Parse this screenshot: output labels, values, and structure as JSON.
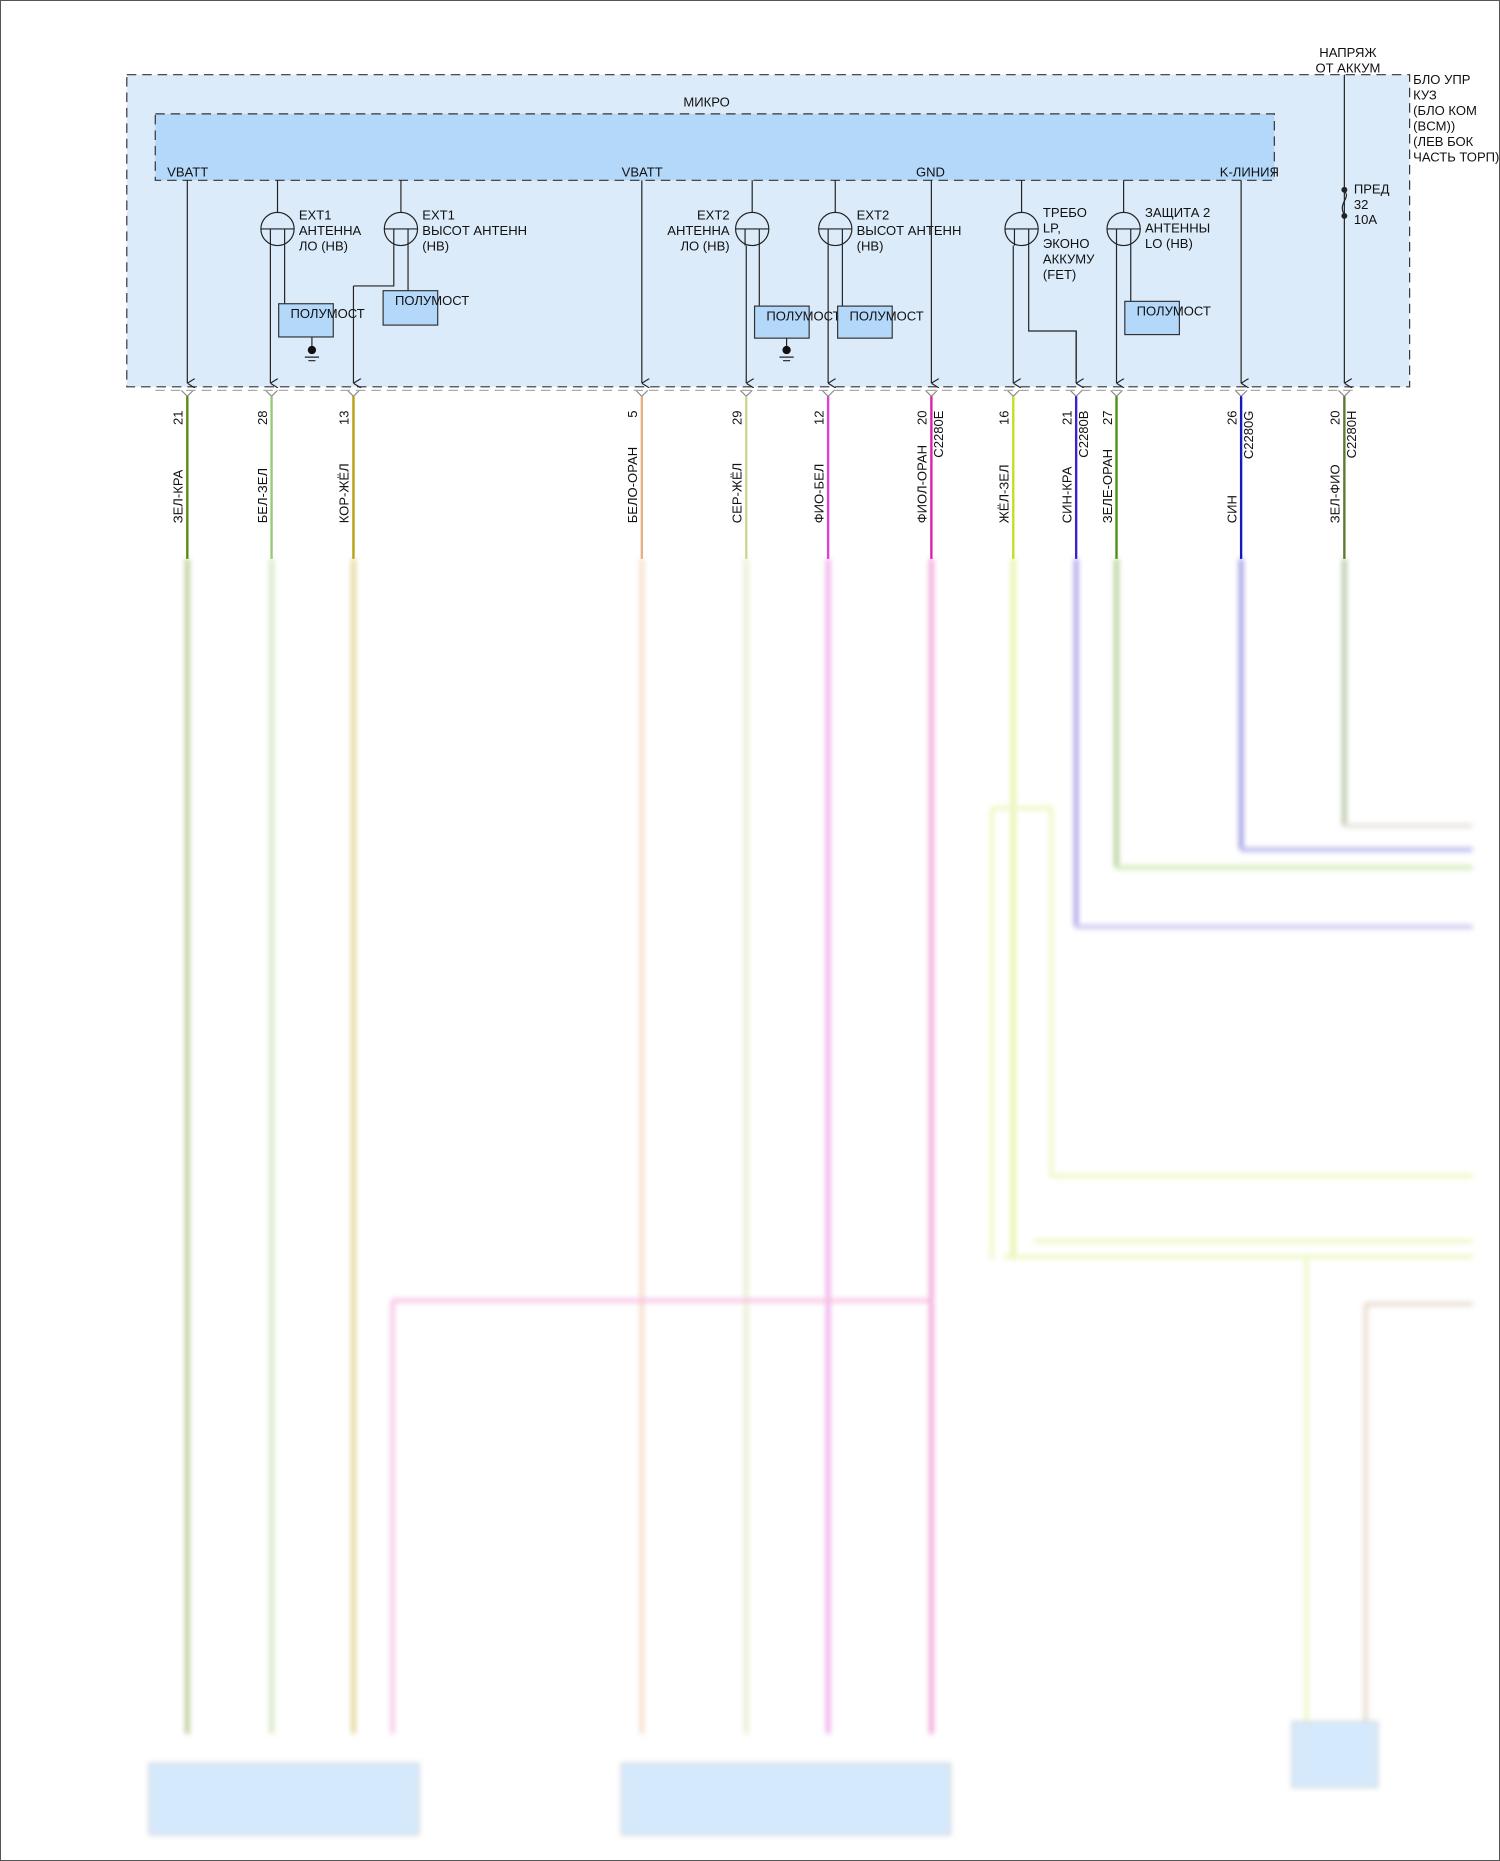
{
  "module": {
    "title_lines": [
      "БЛО УПР",
      "КУЗ",
      "(БЛО КОМ",
      "(BCM))",
      "(ЛЕВ БОК",
      "ЧАСТЬ ТОРП)"
    ],
    "inner_label": "МИКРО",
    "pins": {
      "vbatt1": "VBATT",
      "vbatt2": "VBATT",
      "gnd": "GND",
      "kline": "K-ЛИНИЯ"
    },
    "supply_lines": [
      "НАПРЯЖ",
      "ОТ АККУМ"
    ],
    "fuse_lines": [
      "ПРЕД",
      "32",
      "10A"
    ],
    "drivers": [
      {
        "lines": [
          "EXT1",
          "АНТЕННА",
          "ЛО (НВ)"
        ]
      },
      {
        "lines": [
          "EXT1",
          "ВЫСОТ АНТЕНН",
          "(НВ)"
        ]
      },
      {
        "lines": [
          "EXT2",
          "АНТЕННА",
          "ЛО (НВ)"
        ]
      },
      {
        "lines": [
          "EXT2",
          "ВЫСОТ АНТЕНН",
          "(НВ)"
        ]
      },
      {
        "lines": [
          "ТРЕБО",
          "LP,",
          "ЭКОНО",
          "АККУМУ",
          "(FET)"
        ]
      },
      {
        "lines": [
          "ЗАЩИТА 2",
          "АНТЕННЫ",
          "LO (НВ)"
        ]
      }
    ],
    "half_bridge_label": "ПОЛУМОСТ"
  },
  "wires": [
    {
      "pin": "21",
      "color_name": "ЗЕЛ-КРА",
      "color": "#5a8a10",
      "connector": ""
    },
    {
      "pin": "28",
      "color_name": "БЕЛ-ЗЕЛ",
      "color": "#98c878",
      "connector": ""
    },
    {
      "pin": "13",
      "color_name": "КОР-ЖЁЛ",
      "color": "#b8a010",
      "connector": ""
    },
    {
      "pin": "5",
      "color_name": "БЕЛО-ОРАН",
      "color": "#e8b080",
      "connector": ""
    },
    {
      "pin": "29",
      "color_name": "СЕР-ЖЁЛ",
      "color": "#c8d890",
      "connector": ""
    },
    {
      "pin": "12",
      "color_name": "ФИО-БЕЛ",
      "color": "#e040d0",
      "connector": ""
    },
    {
      "pin": "20",
      "color_name": "ФИОЛ-ОРАН",
      "color": "#e020a8",
      "connector": "C2280E"
    },
    {
      "pin": "16",
      "color_name": "ЖЁЛ-ЗЕЛ",
      "color": "#c0e020",
      "connector": ""
    },
    {
      "pin": "21",
      "color_name": "СИН-КРА",
      "color": "#4020c8",
      "connector": "C2280B"
    },
    {
      "pin": "27",
      "color_name": "ЗЕЛЕ-ОРАН",
      "color": "#4a9010",
      "connector": ""
    },
    {
      "pin": "26",
      "color_name": "СИН",
      "color": "#1818c0",
      "connector": "C2280G"
    },
    {
      "pin": "20",
      "color_name": "ЗЕЛ-ФИО",
      "color": "#5a7a30",
      "connector": "C2280H"
    }
  ],
  "colors": {
    "module_fill": "#dcebfa",
    "inner_fill": "#b4d8fa",
    "box_fill": "#b4d8fa"
  }
}
